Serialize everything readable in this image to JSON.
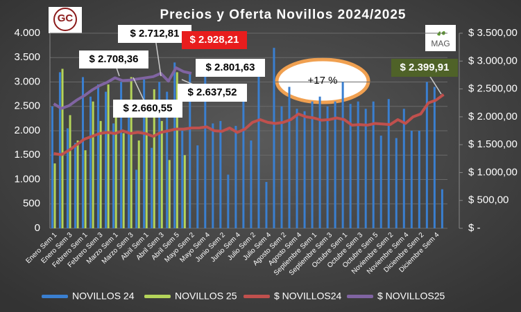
{
  "chart_data": {
    "type": "bar-line",
    "title": "Precios y Oferta Novillos 2024/2025",
    "logos": [
      "GC",
      "MAG"
    ],
    "annotations": [
      "$ 2.712,81",
      "$ 2.708,36",
      "$ 2.928,21",
      "$ 2.801,63",
      "$ 2.660,55",
      "$ 2.637,52",
      "$ 2.399,91",
      "+17 %"
    ],
    "categories": [
      "Enero Sem 1",
      null,
      "Enero Sem 3",
      null,
      "Febrero Sem 1",
      null,
      "Febrero Sem 3",
      null,
      "Marzo Sem 1",
      null,
      "Marzo Sem 3",
      null,
      "Abril Sem 1",
      null,
      "Abril Sem 3",
      null,
      "Abril Sem 5",
      null,
      "Mayo Sem 2",
      null,
      "Mayo Sem 4",
      null,
      "Junio Sem 2",
      null,
      "Junio Sem 4",
      null,
      "Julio Sem 2",
      null,
      "Julio Sem 4",
      null,
      "Agosto Sem 2",
      null,
      "Agosto Sem 4",
      null,
      "Septiembre Sem 1",
      null,
      "Septiembre Sem 3",
      null,
      "Octubre Sem 1",
      null,
      "Octubre Sem 3",
      null,
      "Octubre Sem 5",
      null,
      "Noviembre Sem 2",
      null,
      "Noviembre Sem 4",
      null,
      "Diciembre Sem 2",
      null,
      "Diciembre Sem 4",
      null
    ],
    "series": [
      {
        "name": "NOVILLOS 24",
        "color": "#3a7fd0",
        "kind": "bar",
        "values": [
          2500,
          3200,
          2050,
          1750,
          3100,
          2700,
          2950,
          2800,
          2150,
          3000,
          2600,
          1200,
          3050,
          1650,
          3000,
          2800,
          3400,
          2000,
          3200,
          1700,
          3300,
          2150,
          2200,
          1100,
          2100,
          2850,
          1800,
          3400,
          950,
          3700,
          2500,
          2900,
          2450,
          2400,
          2600,
          2700,
          2500,
          2600,
          3000,
          2550,
          2600,
          2450,
          2600,
          1900,
          2650,
          1850,
          2450,
          2000,
          2000,
          3000,
          2900,
          800
        ]
      },
      {
        "name": "NOVILLOS 25",
        "color": "#b4d45a",
        "kind": "bar",
        "values": [
          1330,
          3270,
          2320,
          1800,
          1600,
          2600,
          2200,
          2950,
          2600,
          1950,
          3100,
          1800,
          2500,
          2850,
          2200,
          1400,
          3200,
          1500,
          null,
          null,
          null,
          null,
          null,
          null,
          null,
          null,
          null,
          null,
          null,
          null,
          null,
          null,
          null,
          null,
          null,
          null,
          null,
          null,
          null,
          null,
          null,
          null,
          null,
          null,
          null,
          null,
          null,
          null,
          null,
          null,
          null,
          null
        ]
      },
      {
        "name": "$ NOVILLOS24",
        "color": "#c0504d",
        "kind": "line",
        "axis": "y2",
        "values": [
          1340,
          1320,
          1400,
          1500,
          1600,
          1650,
          1700,
          1720,
          1700,
          1750,
          1700,
          1720,
          1700,
          1650,
          1720,
          1750,
          1780,
          1780,
          1800,
          1800,
          1820,
          1750,
          1740,
          1800,
          1720,
          1780,
          1900,
          1950,
          1900,
          1880,
          1900,
          1950,
          2050,
          2000,
          1980,
          1940,
          1950,
          1980,
          1950,
          1850,
          1860,
          1850,
          1880,
          1870,
          1860,
          1950,
          1880,
          2000,
          2050,
          2250,
          2300,
          2400
        ]
      },
      {
        "name": "$ NOVILLOS25",
        "color": "#8064a2",
        "kind": "line",
        "axis": "y2",
        "values": [
          2234,
          2150,
          2200,
          2300,
          2380,
          2480,
          2560,
          2620,
          2700,
          2650,
          2660,
          2680,
          2700,
          2720,
          2780,
          2640,
          2880,
          2810,
          2780,
          null,
          null,
          null,
          null,
          null,
          null,
          null,
          null,
          null,
          null,
          null,
          null,
          null,
          null,
          null,
          null,
          null,
          null,
          null,
          null,
          null,
          null,
          null,
          null,
          null,
          null,
          null,
          null,
          null,
          null,
          null,
          null,
          null
        ]
      }
    ],
    "ylim": [
      0,
      4000
    ],
    "yticks": [
      0,
      500,
      {
        "value": 1000,
        "label": "1.000"
      },
      {
        "value": 1500,
        "label": "1.500"
      },
      {
        "value": 2000,
        "label": "2.000"
      },
      {
        "value": 2500,
        "label": "2.500"
      },
      {
        "value": 3000,
        "label": "3.000"
      },
      {
        "value": 3500,
        "label": "3.500"
      },
      {
        "value": 4000,
        "label": "4.000"
      }
    ],
    "y2lim": [
      0,
      3500
    ],
    "y2ticks": [
      {
        "value": 0,
        "label": "$ -"
      },
      {
        "value": 500,
        "label": "$ 500,00"
      },
      {
        "value": 1000,
        "label": "$ 1.000,00"
      },
      {
        "value": 1500,
        "label": "$ 1.500,00"
      },
      {
        "value": 2000,
        "label": "$ 2.000,00"
      },
      {
        "value": 2500,
        "label": "$ 2.500,00"
      },
      {
        "value": 3000,
        "label": "$ 3.000,00"
      },
      {
        "value": 3500,
        "label": "$ 3.500,00"
      }
    ],
    "grid": true
  }
}
